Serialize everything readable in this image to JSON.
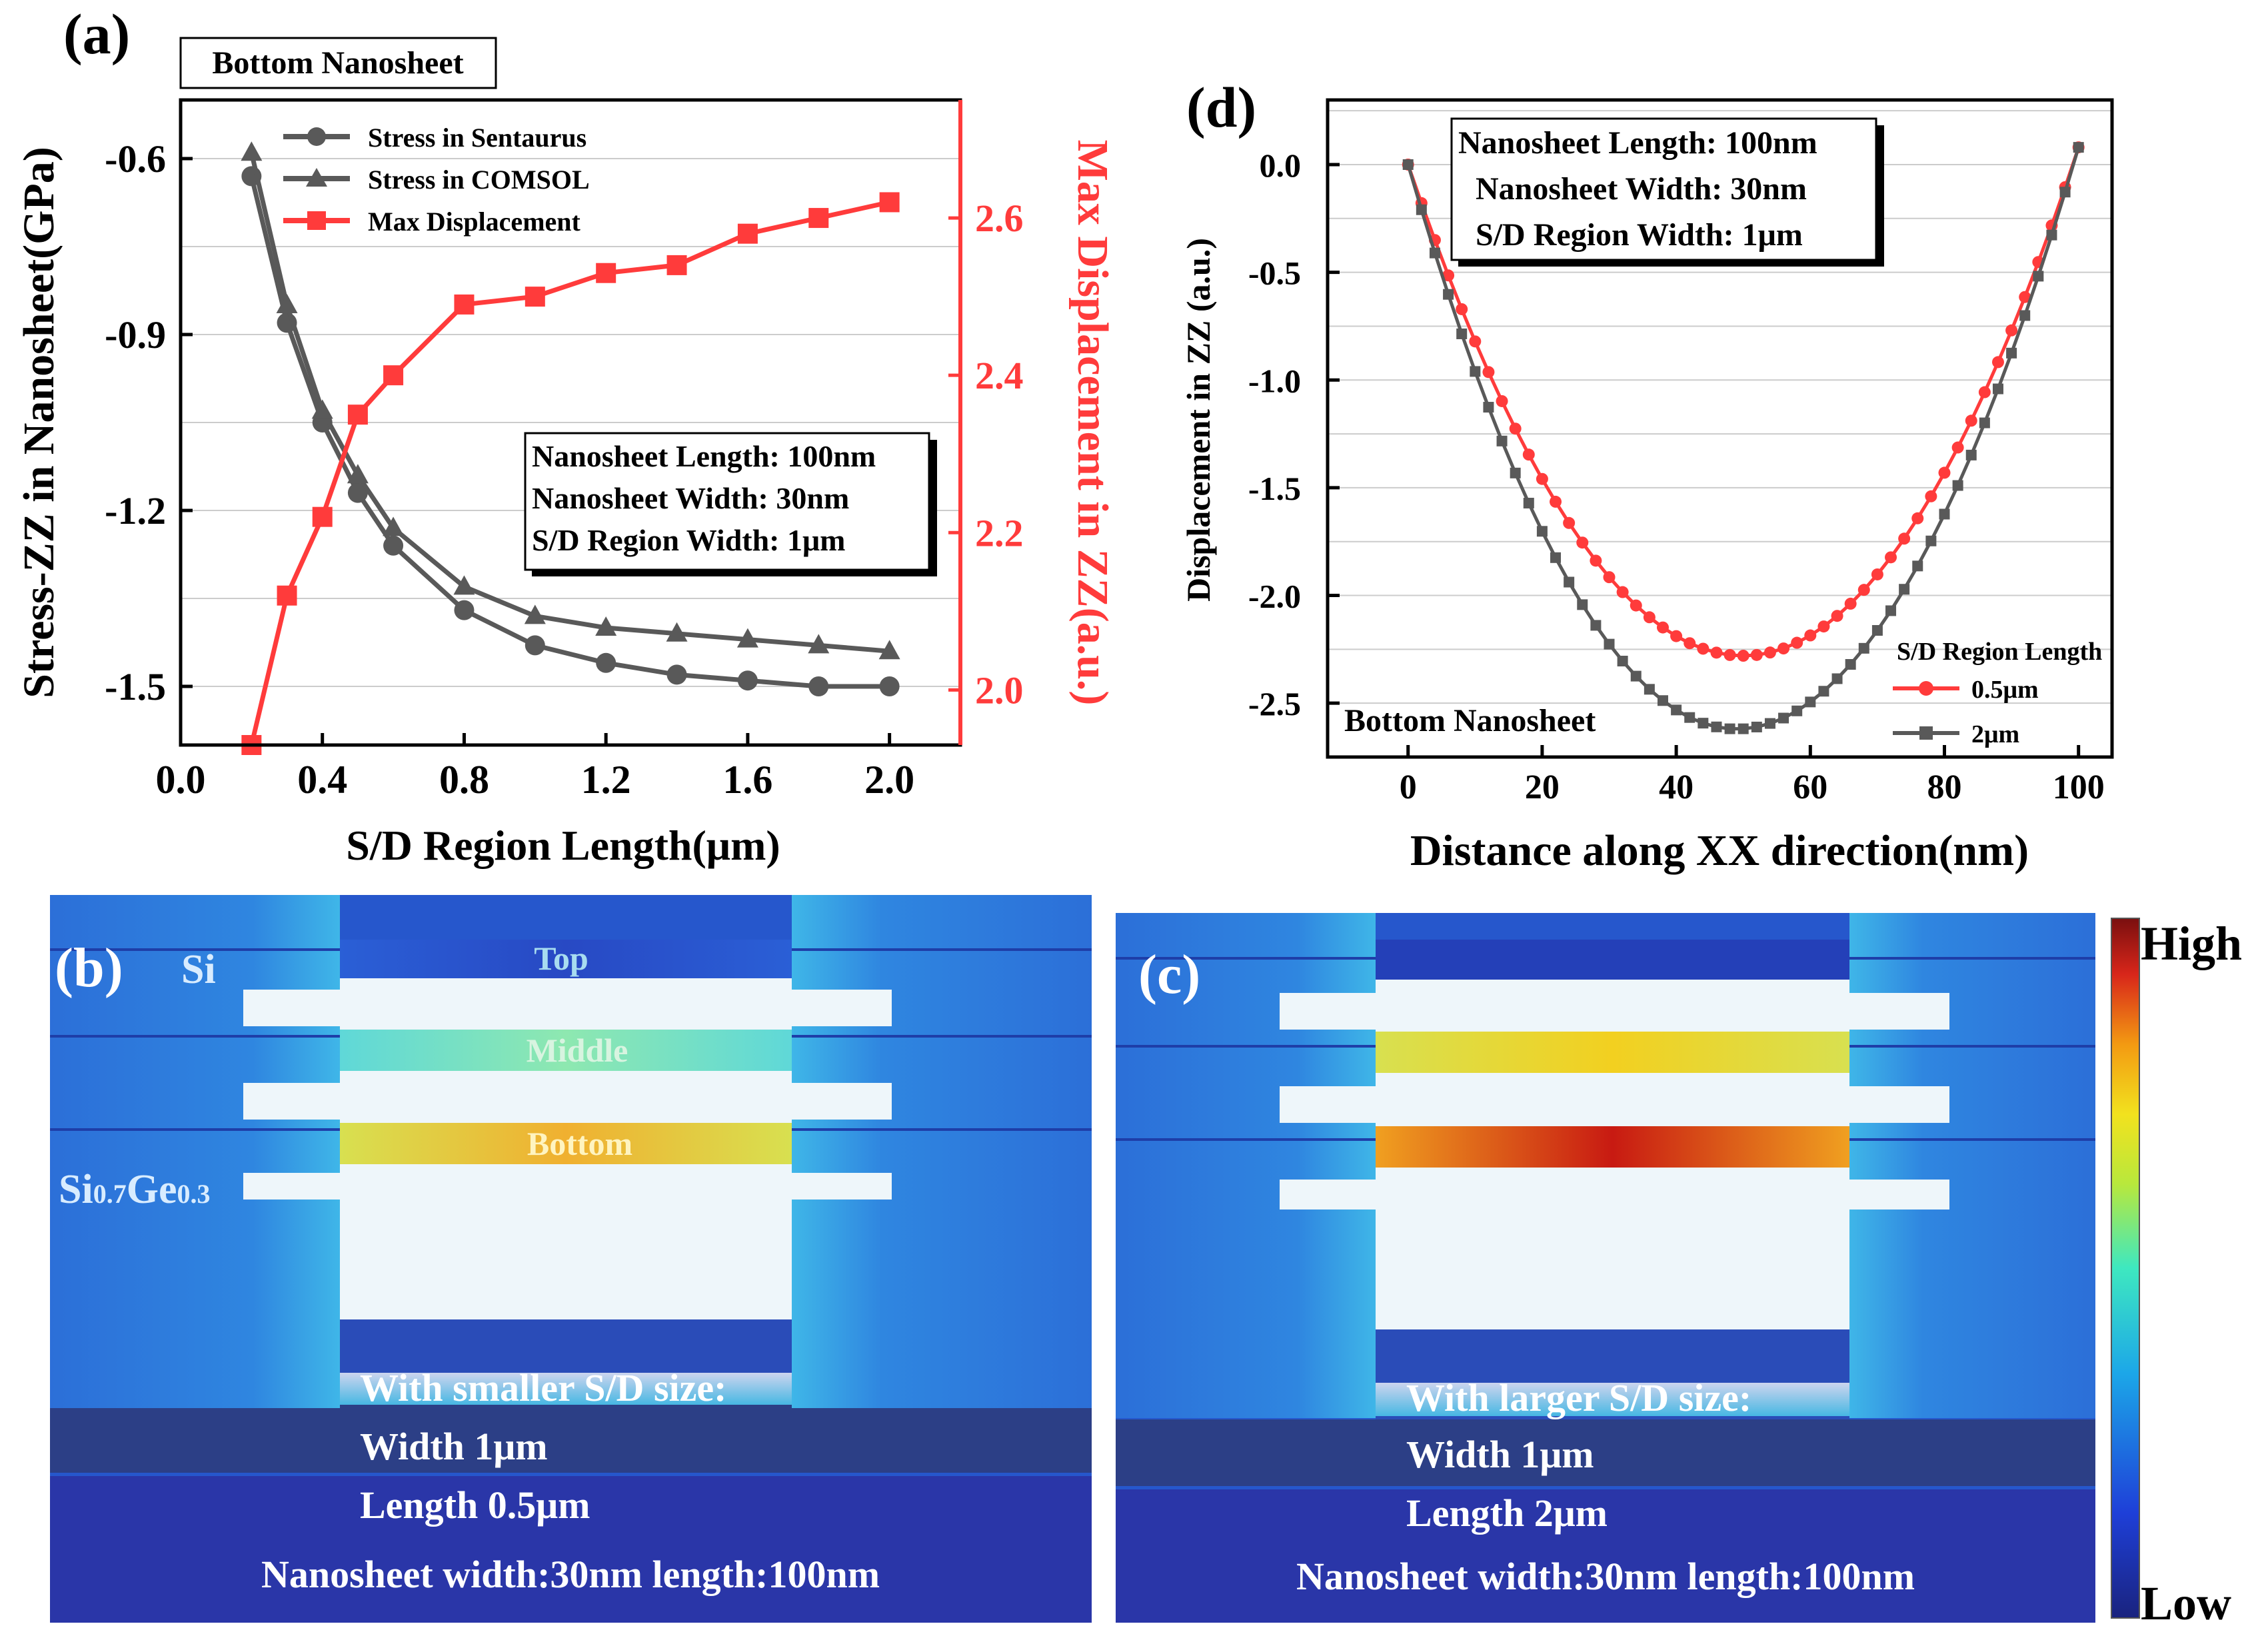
{
  "colors": {
    "gray_series": "#595959",
    "red_series": "#ff3b3b",
    "axis": "#000000",
    "grid": "#cccccc"
  },
  "chart_data": [
    {
      "panel": "(a)",
      "type": "line",
      "title_box": "Bottom Nanosheet",
      "xlabel": "S/D Region Length(μm)",
      "ylabel_left": "Stress-ZZ in Nanosheet(GPa)",
      "ylabel_right": "Max Displacement in ZZ(a.u.)",
      "xlim": [
        0.0,
        2.2
      ],
      "ylim_left": [
        -1.6,
        -0.5
      ],
      "ylim_right": [
        1.93,
        2.75
      ],
      "xticks": [
        "0.0",
        "0.4",
        "0.8",
        "1.2",
        "1.6",
        "2.0"
      ],
      "xtick_values": [
        0.0,
        0.4,
        0.8,
        1.2,
        1.6,
        2.0
      ],
      "yticks_left": [
        "-0.6",
        "-0.9",
        "-1.2",
        "-1.5"
      ],
      "ytick_values_left": [
        -0.6,
        -0.9,
        -1.2,
        -1.5
      ],
      "yticks_right": [
        "2.0",
        "2.2",
        "2.4",
        "2.6"
      ],
      "ytick_values_right": [
        2.0,
        2.2,
        2.4,
        2.6
      ],
      "x": [
        0.2,
        0.3,
        0.4,
        0.5,
        0.6,
        0.8,
        1.0,
        1.2,
        1.4,
        1.6,
        1.8,
        2.0
      ],
      "series": [
        {
          "name": "Stress in Sentaurus",
          "axis": "left",
          "marker": "circle",
          "color": "#595959",
          "values": [
            -0.63,
            -0.88,
            -1.05,
            -1.17,
            -1.26,
            -1.37,
            -1.43,
            -1.46,
            -1.48,
            -1.49,
            -1.5,
            -1.5
          ]
        },
        {
          "name": "Stress in COMSOL",
          "axis": "left",
          "marker": "triangle",
          "color": "#595959",
          "values": [
            -0.59,
            -0.85,
            -1.03,
            -1.14,
            -1.23,
            -1.33,
            -1.38,
            -1.4,
            -1.41,
            -1.42,
            -1.43,
            -1.44
          ]
        },
        {
          "name": "Max Displacement",
          "axis": "right",
          "marker": "square",
          "color": "#ff3b3b",
          "values": [
            1.93,
            2.12,
            2.22,
            2.35,
            2.4,
            2.49,
            2.5,
            2.53,
            2.54,
            2.58,
            2.6,
            2.62
          ]
        }
      ],
      "annotation": [
        "Nanosheet Length: 100nm",
        "Nanosheet Width: 30nm",
        "S/D Region Width: 1μm"
      ]
    },
    {
      "panel": "(d)",
      "type": "line",
      "xlabel": "Distance along XX direction(nm)",
      "ylabel": "Displacement in ZZ (a.u.)",
      "xlim": [
        -12,
        105
      ],
      "ylim": [
        -2.75,
        0.3
      ],
      "xticks": [
        "0",
        "20",
        "40",
        "60",
        "80",
        "100"
      ],
      "xtick_values": [
        0,
        20,
        40,
        60,
        80,
        100
      ],
      "yticks": [
        "0.0",
        "-0.5",
        "-1.0",
        "-1.5",
        "-2.0",
        "-2.5"
      ],
      "ytick_values": [
        0.0,
        -0.5,
        -1.0,
        -1.5,
        -2.0,
        -2.5
      ],
      "legend_title": "S/D Region Length",
      "series": [
        {
          "name": "0.5μm",
          "marker": "circle",
          "color": "#ff3b3b",
          "x_start": 0,
          "x_end": 100,
          "step": 2,
          "y_start": 0.0,
          "y_end": 0.08,
          "min_x": 50,
          "min_y": -2.28
        },
        {
          "name": "2μm",
          "marker": "square",
          "color": "#595959",
          "x_start": 0,
          "x_end": 100,
          "step": 2,
          "y_start": 0.0,
          "y_end": 0.08,
          "min_x": 49,
          "min_y": -2.62
        }
      ],
      "corner_label": "Bottom Nanosheet",
      "annotation": [
        "Nanosheet Length: 100nm",
        "Nanosheet Width: 30nm",
        "S/D Region Width: 1μm"
      ]
    }
  ],
  "panel_labels": {
    "a": "(a)",
    "b": "(b)",
    "c": "(c)",
    "d": "(d)"
  },
  "panel_b": {
    "layer_labels": {
      "top": "Top",
      "middle": "Middle",
      "bottom": "Bottom"
    },
    "si_label": "Si",
    "sige_label": {
      "base": "Si",
      "sub1": "0.7",
      "mid": "Ge",
      "sub2": "0.3"
    },
    "caption": [
      "With smaller S/D size:",
      "Width 1μm",
      "Length 0.5μm"
    ],
    "footer": "Nanosheet width:30nm length:100nm"
  },
  "panel_c": {
    "caption": [
      "With larger S/D size:",
      "Width 1μm",
      "Length 2μm"
    ],
    "footer": "Nanosheet width:30nm length:100nm"
  },
  "colorbar": {
    "high": "High",
    "low": "Low"
  }
}
